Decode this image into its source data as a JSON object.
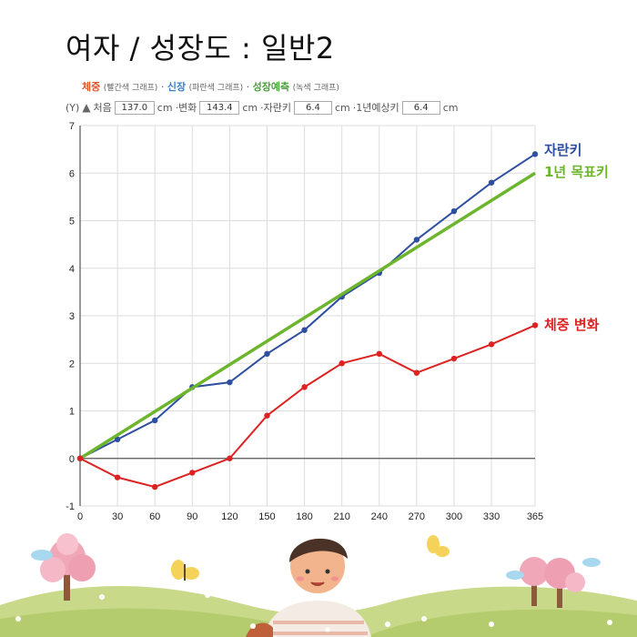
{
  "title": "여자 / 성장도 : 일반2",
  "legend": {
    "weight_label": "체중",
    "weight_note": "(빨간색 그래프)",
    "sep1": "·",
    "height_label": "신장",
    "height_note": "(파란색 그래프)",
    "sep2": "·",
    "predict_label": "성장예측",
    "predict_note": "(녹색 그래프)"
  },
  "info": {
    "y_marker": "(Y)",
    "start_label": "처음",
    "start_value": "137.0",
    "unit1": "cm",
    "change_label": "·변화",
    "change_value": "143.4",
    "unit2": "cm",
    "growth_label": "·자란키",
    "growth_value": "6.4",
    "unit3": "cm",
    "predict_label": "·1년예상키",
    "predict_value": "6.4",
    "unit4": "cm"
  },
  "colors": {
    "height": "#2e4fa0",
    "target": "#6cb52d",
    "weight": "#dd2222",
    "grid": "#dddddd"
  },
  "chart_data": {
    "type": "line",
    "x": [
      0,
      30,
      60,
      90,
      120,
      150,
      180,
      210,
      240,
      270,
      300,
      330,
      365
    ],
    "xlim": [
      0,
      365
    ],
    "ylim": [
      -1,
      7
    ],
    "x_ticks": [
      0,
      30,
      60,
      90,
      120,
      150,
      180,
      210,
      240,
      270,
      300,
      330,
      365
    ],
    "y_ticks": [
      -1,
      0,
      1,
      2,
      3,
      4,
      5,
      6,
      7
    ],
    "grid": true,
    "series": [
      {
        "name": "자란키",
        "color": "#2e4fa0",
        "markers": true,
        "x": [
          0,
          30,
          60,
          90,
          120,
          150,
          180,
          210,
          240,
          270,
          300,
          330,
          365
        ],
        "values": [
          0,
          0.4,
          0.8,
          1.5,
          1.6,
          2.2,
          2.7,
          3.4,
          3.9,
          4.6,
          5.2,
          5.8,
          6.4
        ]
      },
      {
        "name": "1년 목표키",
        "color": "#6cb52d",
        "markers": false,
        "x": [
          0,
          365
        ],
        "values": [
          0,
          6.0
        ]
      },
      {
        "name": "체중 변화",
        "color": "#dd2222",
        "markers": true,
        "x": [
          0,
          30,
          60,
          90,
          120,
          150,
          180,
          210,
          240,
          270,
          300,
          330,
          365
        ],
        "values": [
          0,
          -0.4,
          -0.6,
          -0.3,
          0,
          0.9,
          1.5,
          2.0,
          2.2,
          1.8,
          2.1,
          2.4,
          2.8
        ]
      }
    ]
  }
}
